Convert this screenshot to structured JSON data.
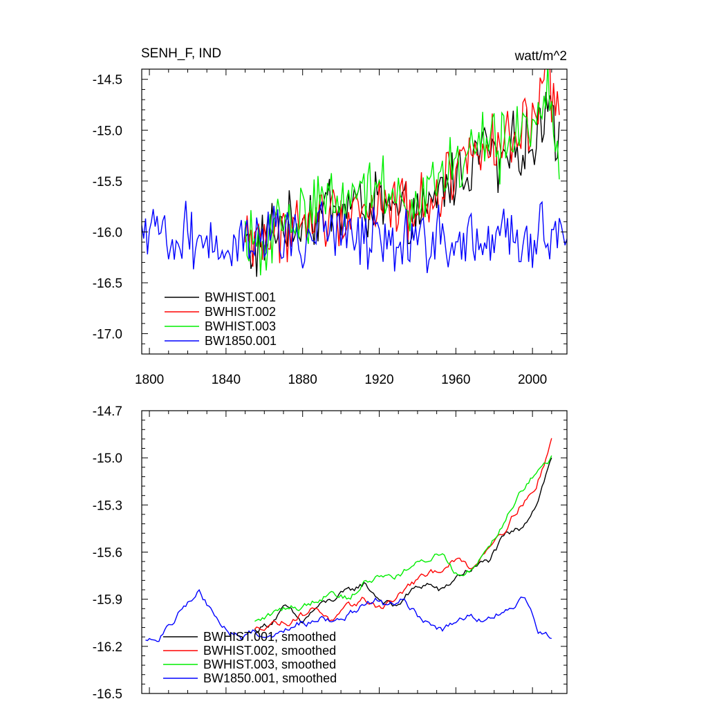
{
  "colors": {
    "BWHIST.001": "#000000",
    "BWHIST.002": "#ff0000",
    "BWHIST.003": "#00ee00",
    "BW1850.001": "#0000ff"
  },
  "chart_data": [
    {
      "type": "line",
      "title": "SENH_F, IND",
      "units": "watt/m^2",
      "xlim": [
        1796,
        2018
      ],
      "ylim": [
        -17.2,
        -14.4
      ],
      "xticks": [
        1800,
        1840,
        1880,
        1920,
        1960,
        2000
      ],
      "xtick_labels": [
        "1800",
        "1840",
        "1880",
        "1920",
        "1960",
        "2000"
      ],
      "yticks": [
        -14.5,
        -15.0,
        -15.5,
        -16.0,
        -16.5,
        -17.0
      ],
      "ytick_labels": [
        "-14.5",
        "-15.0",
        "-15.5",
        "-16.0",
        "-16.5",
        "-17.0"
      ],
      "legend_position": "bottom-left",
      "series": [
        {
          "name": "BWHIST.001",
          "color": "#000000",
          "x_range": [
            1850,
            2014
          ],
          "anchor_values": [
            -16.1,
            -16.2,
            -16.0,
            -15.9,
            -16.0,
            -15.8,
            -15.9,
            -15.7,
            -15.8,
            -15.7,
            -15.8,
            -15.7,
            -15.8,
            -15.9,
            -15.8,
            -15.9,
            -15.6,
            -15.5,
            -15.4,
            -15.3,
            -15.1,
            -15.4,
            -15.2,
            -15.1,
            -15.2,
            -14.6,
            -15.1
          ]
        },
        {
          "name": "BWHIST.002",
          "color": "#ff0000",
          "x_range": [
            1850,
            2014
          ],
          "anchor_values": [
            -16.1,
            -16.0,
            -16.1,
            -16.0,
            -15.9,
            -16.0,
            -15.8,
            -15.9,
            -15.8,
            -15.7,
            -15.8,
            -15.7,
            -15.8,
            -15.7,
            -15.8,
            -15.7,
            -15.6,
            -15.4,
            -15.3,
            -15.2,
            -15.0,
            -15.3,
            -15.1,
            -15.0,
            -15.0,
            -14.5,
            -14.8
          ]
        },
        {
          "name": "BWHIST.003",
          "color": "#00ee00",
          "x_range": [
            1850,
            2014
          ],
          "anchor_values": [
            -16.1,
            -16.2,
            -16.0,
            -15.9,
            -15.9,
            -15.8,
            -15.7,
            -15.6,
            -15.7,
            -15.5,
            -15.6,
            -15.5,
            -15.6,
            -15.6,
            -15.7,
            -15.6,
            -15.5,
            -15.4,
            -15.3,
            -15.2,
            -15.0,
            -15.2,
            -15.1,
            -15.0,
            -14.9,
            -14.6,
            -15.2
          ]
        },
        {
          "name": "BW1850.001",
          "color": "#0000ff",
          "x_range": [
            1796,
            2018
          ],
          "anchor_values": [
            -16.1,
            -16.1,
            -16.0,
            -16.1,
            -16.0,
            -16.1,
            -16.0,
            -16.1,
            -16.1,
            -16.0,
            -16.1,
            -16.0,
            -16.1,
            -16.0,
            -16.1,
            -16.0,
            -16.1,
            -16.0,
            -16.0,
            -16.1,
            -16.0,
            -16.1,
            -16.1,
            -16.0,
            -16.1,
            -16.0,
            -16.1,
            -16.1,
            -16.0,
            -16.1,
            -16.1,
            -16.0,
            -16.1,
            -16.2,
            -16.0,
            -16.1,
            -16.0
          ]
        }
      ]
    },
    {
      "type": "line",
      "title": "",
      "xlim": [
        1796,
        2018
      ],
      "ylim": [
        -16.5,
        -14.7
      ],
      "xticks": [
        1800,
        1840,
        1880,
        1920,
        1960,
        2000
      ],
      "yticks": [
        -14.7,
        -15.0,
        -15.3,
        -15.6,
        -15.9,
        -16.2,
        -16.5
      ],
      "ytick_labels": [
        "-14.7",
        "-15.0",
        "-15.3",
        "-15.6",
        "-15.9",
        "-16.2",
        "-16.5"
      ],
      "legend_position": "bottom-left",
      "series": [
        {
          "name": "BWHIST.001, smoothed",
          "color": "#000000",
          "x_range": [
            1855,
            2010
          ],
          "anchor_values": [
            -16.1,
            -16.05,
            -15.95,
            -16.05,
            -15.95,
            -15.9,
            -15.85,
            -15.8,
            -15.9,
            -15.95,
            -15.85,
            -15.8,
            -15.85,
            -15.75,
            -15.7,
            -15.65,
            -15.5,
            -15.45,
            -15.3,
            -15.0
          ]
        },
        {
          "name": "BWHIST.002, smoothed",
          "color": "#ff0000",
          "x_range": [
            1855,
            2010
          ],
          "anchor_values": [
            -16.1,
            -16.05,
            -16.05,
            -16.0,
            -15.95,
            -16.05,
            -15.95,
            -15.9,
            -15.95,
            -15.9,
            -15.8,
            -15.75,
            -15.7,
            -15.65,
            -15.7,
            -15.55,
            -15.45,
            -15.3,
            -15.2,
            -14.88
          ]
        },
        {
          "name": "BWHIST.003, smoothed",
          "color": "#00ee00",
          "x_range": [
            1855,
            2010
          ],
          "anchor_values": [
            -16.05,
            -16.0,
            -15.95,
            -15.95,
            -15.9,
            -15.85,
            -15.9,
            -15.8,
            -15.75,
            -15.75,
            -15.7,
            -15.65,
            -15.6,
            -15.75,
            -15.7,
            -15.55,
            -15.4,
            -15.2,
            -15.1,
            -15.0
          ]
        },
        {
          "name": "BW1850.001, smoothed",
          "color": "#0000ff",
          "x_range": [
            1798,
            2010
          ],
          "anchor_values": [
            -16.17,
            -16.15,
            -16.05,
            -15.93,
            -15.85,
            -16.0,
            -16.1,
            -16.15,
            -16.1,
            -16.15,
            -16.1,
            -16.05,
            -16.05,
            -16.0,
            -16.05,
            -16.0,
            -15.95,
            -15.9,
            -15.95,
            -15.9,
            -16.0,
            -16.05,
            -16.1,
            -16.05,
            -16.0,
            -16.05,
            -16.0,
            -15.95,
            -15.9,
            -16.1,
            -16.15
          ]
        }
      ]
    }
  ]
}
